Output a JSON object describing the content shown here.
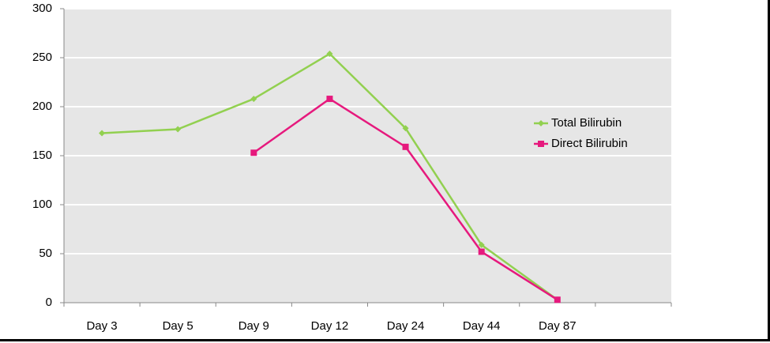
{
  "chart_data": {
    "type": "line",
    "title": "",
    "xlabel": "",
    "ylabel": "",
    "ylim": [
      0,
      300
    ],
    "yticks": [
      0,
      50,
      100,
      150,
      200,
      250,
      300
    ],
    "categories": [
      "Day 3",
      "Day 5",
      "Day 9",
      "Day 12",
      "Day 24",
      "Day 44",
      "Day 87",
      ""
    ],
    "grid": "horizontal",
    "legend_position": "right",
    "background_color": "#e6e6e6",
    "series": [
      {
        "name": "Total Bilirubin",
        "color": "#92d050",
        "marker": "diamond",
        "values": [
          173,
          177,
          208,
          254,
          178,
          59,
          3,
          null
        ]
      },
      {
        "name": "Direct Bilirubin",
        "color": "#e6197d",
        "marker": "square",
        "values": [
          null,
          null,
          153,
          208,
          159,
          52,
          3,
          null
        ]
      }
    ]
  }
}
